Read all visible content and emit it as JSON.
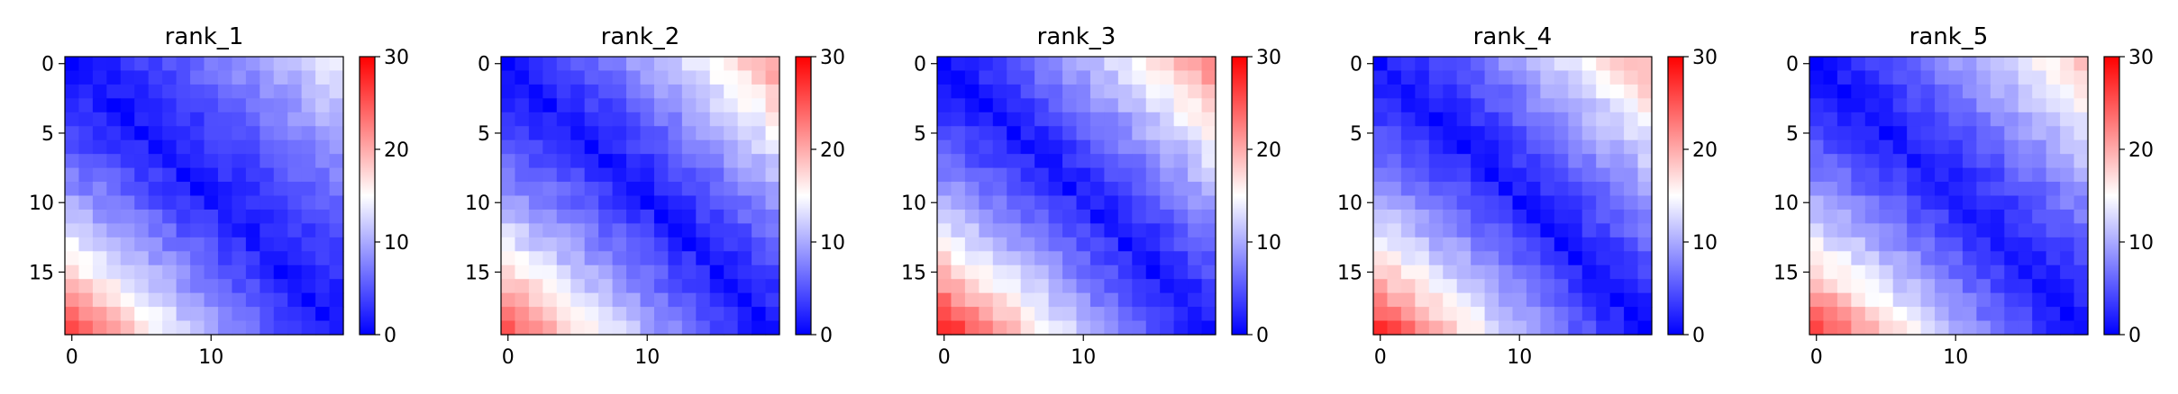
{
  "chart_data": [
    {
      "type": "heatmap",
      "title": "rank_1",
      "n": 20,
      "seed": 11,
      "vmin": 0,
      "vmax": 30,
      "x_ticks": [
        "0",
        "10"
      ],
      "y_ticks": [
        "0",
        "5",
        "10",
        "15"
      ],
      "colorbar_ticks": [
        "0",
        "10",
        "20",
        "30"
      ],
      "colormap": "bwr",
      "values_note": "distance-like matrix: ~0 on diagonal, rising to ~12 upper-right and ~22 lower-left"
    },
    {
      "type": "heatmap",
      "title": "rank_2",
      "n": 20,
      "seed": 23,
      "vmin": 0,
      "vmax": 30,
      "x_ticks": [
        "0",
        "10"
      ],
      "y_ticks": [
        "0",
        "5",
        "10",
        "15"
      ],
      "colorbar_ticks": [
        "0",
        "10",
        "20",
        "30"
      ],
      "colormap": "bwr",
      "values_note": "distance-like matrix: ~0 on diagonal, rising to ~18 upper-right and ~22 lower-left"
    },
    {
      "type": "heatmap",
      "title": "rank_3",
      "n": 20,
      "seed": 37,
      "vmin": 0,
      "vmax": 30,
      "x_ticks": [
        "0",
        "10"
      ],
      "y_ticks": [
        "0",
        "5",
        "10",
        "15"
      ],
      "colorbar_ticks": [
        "0",
        "10",
        "20",
        "30"
      ],
      "colormap": "bwr",
      "values_note": "distance-like matrix: ~0 on diagonal, rising to ~19 upper-right and ~25 lower-left"
    },
    {
      "type": "heatmap",
      "title": "rank_4",
      "n": 20,
      "seed": 41,
      "vmin": 0,
      "vmax": 30,
      "x_ticks": [
        "0",
        "10"
      ],
      "y_ticks": [
        "0",
        "5",
        "10",
        "15"
      ],
      "colorbar_ticks": [
        "0",
        "10",
        "20",
        "30"
      ],
      "colormap": "bwr",
      "values_note": "distance-like matrix: ~0 on diagonal, rising to ~17 upper-right and ~24 lower-left"
    },
    {
      "type": "heatmap",
      "title": "rank_5",
      "n": 20,
      "seed": 53,
      "vmin": 0,
      "vmax": 30,
      "x_ticks": [
        "0",
        "10"
      ],
      "y_ticks": [
        "0",
        "5",
        "10",
        "15"
      ],
      "colorbar_ticks": [
        "0",
        "10",
        "20",
        "30"
      ],
      "colormap": "bwr",
      "values_note": "distance-like matrix: ~0 on diagonal, rising to ~16 upper-right and ~23 lower-left"
    }
  ],
  "colors": {
    "low": "#0000ff",
    "mid": "#ffffff",
    "high": "#ff0000"
  }
}
